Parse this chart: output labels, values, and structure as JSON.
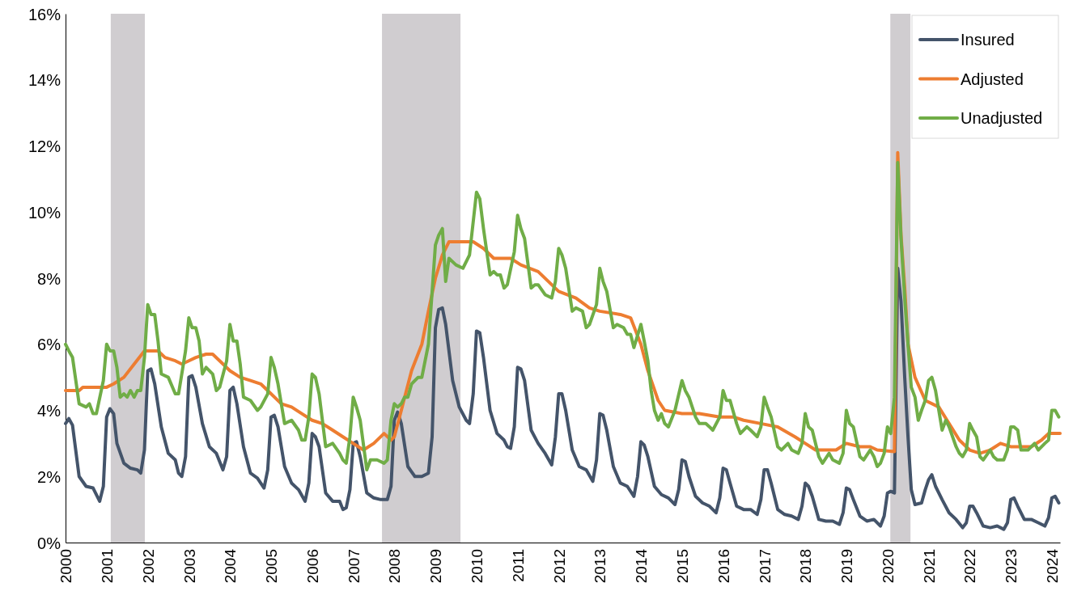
{
  "chart_data": {
    "type": "line",
    "xlim": [
      2000,
      2024.2
    ],
    "xticks": [
      2000,
      2001,
      2002,
      2003,
      2004,
      2005,
      2006,
      2007,
      2008,
      2009,
      2010,
      2011,
      2012,
      2013,
      2014,
      2015,
      2016,
      2017,
      2018,
      2019,
      2020,
      2021,
      2022,
      2023,
      2024
    ],
    "ylim": [
      0,
      16
    ],
    "yticks": [
      {
        "value": 0,
        "label": "0%"
      },
      {
        "value": 2,
        "label": "2%"
      },
      {
        "value": 4,
        "label": "4%"
      },
      {
        "value": 6,
        "label": "6%"
      },
      {
        "value": 8,
        "label": "8%"
      },
      {
        "value": 10,
        "label": "10%"
      },
      {
        "value": 12,
        "label": "12%"
      },
      {
        "value": 14,
        "label": "14%"
      },
      {
        "value": 16,
        "label": "16%"
      }
    ],
    "grid": false,
    "legend": "top right",
    "line_style": "solid",
    "marker": "none",
    "bands": [
      {
        "axis": "x",
        "from": 2001.1,
        "to": 2001.93,
        "color": "#d0cdd0"
      },
      {
        "axis": "x",
        "from": 2007.7,
        "to": 2009.61,
        "color": "#d0cdd0"
      },
      {
        "axis": "x",
        "from": 2020.07,
        "to": 2020.56,
        "color": "#d0cdd0"
      }
    ],
    "series": [
      {
        "name": "Insured",
        "color": "#44546a",
        "x": [
          2000,
          2000.08,
          2000.17,
          2000.33,
          2000.5,
          2000.67,
          2000.83,
          2000.92,
          2001,
          2001.08,
          2001.17,
          2001.25,
          2001.42,
          2001.58,
          2001.75,
          2001.83,
          2001.92,
          2002,
          2002.08,
          2002.17,
          2002.33,
          2002.5,
          2002.67,
          2002.75,
          2002.83,
          2002.92,
          2003,
          2003.08,
          2003.17,
          2003.33,
          2003.5,
          2003.67,
          2003.83,
          2003.92,
          2004,
          2004.08,
          2004.17,
          2004.33,
          2004.5,
          2004.67,
          2004.83,
          2004.92,
          2005,
          2005.08,
          2005.17,
          2005.33,
          2005.5,
          2005.67,
          2005.83,
          2005.92,
          2006,
          2006.08,
          2006.17,
          2006.33,
          2006.5,
          2006.67,
          2006.75,
          2006.83,
          2006.92,
          2007,
          2007.08,
          2007.17,
          2007.33,
          2007.5,
          2007.67,
          2007.83,
          2007.92,
          2008,
          2008.08,
          2008.17,
          2008.33,
          2008.5,
          2008.67,
          2008.83,
          2008.92,
          2009,
          2009.08,
          2009.17,
          2009.25,
          2009.42,
          2009.58,
          2009.75,
          2009.83,
          2009.92,
          2010,
          2010.08,
          2010.17,
          2010.33,
          2010.5,
          2010.67,
          2010.75,
          2010.83,
          2010.92,
          2011,
          2011.08,
          2011.17,
          2011.33,
          2011.5,
          2011.67,
          2011.83,
          2011.92,
          2012,
          2012.08,
          2012.17,
          2012.33,
          2012.5,
          2012.67,
          2012.83,
          2012.92,
          2013,
          2013.08,
          2013.17,
          2013.33,
          2013.5,
          2013.67,
          2013.83,
          2013.92,
          2014,
          2014.08,
          2014.17,
          2014.33,
          2014.5,
          2014.67,
          2014.83,
          2014.92,
          2015,
          2015.08,
          2015.17,
          2015.33,
          2015.5,
          2015.67,
          2015.83,
          2015.92,
          2016,
          2016.08,
          2016.17,
          2016.33,
          2016.5,
          2016.67,
          2016.83,
          2016.92,
          2017,
          2017.08,
          2017.17,
          2017.33,
          2017.5,
          2017.67,
          2017.83,
          2017.92,
          2018,
          2018.08,
          2018.17,
          2018.33,
          2018.5,
          2018.67,
          2018.83,
          2018.92,
          2019,
          2019.08,
          2019.17,
          2019.33,
          2019.5,
          2019.67,
          2019.83,
          2019.92,
          2020,
          2020.08,
          2020.17,
          2020.25,
          2020.33,
          2020.42,
          2020.5,
          2020.58,
          2020.67,
          2020.83,
          2020.92,
          2021,
          2021.08,
          2021.17,
          2021.33,
          2021.5,
          2021.67,
          2021.83,
          2021.92,
          2022,
          2022.08,
          2022.17,
          2022.33,
          2022.5,
          2022.67,
          2022.83,
          2022.92,
          2023,
          2023.08,
          2023.17,
          2023.33,
          2023.5,
          2023.67,
          2023.83,
          2023.92,
          2024,
          2024.08,
          2024.17
        ],
        "values": [
          3.6,
          3.75,
          3.55,
          2.0,
          1.7,
          1.65,
          1.25,
          1.7,
          3.8,
          4.05,
          3.9,
          3.0,
          2.4,
          2.25,
          2.2,
          2.1,
          2.8,
          5.2,
          5.25,
          4.8,
          3.5,
          2.7,
          2.5,
          2.1,
          2.0,
          2.6,
          5.0,
          5.05,
          4.7,
          3.6,
          2.9,
          2.7,
          2.2,
          2.6,
          4.6,
          4.7,
          4.2,
          2.9,
          2.1,
          1.95,
          1.65,
          2.2,
          3.8,
          3.85,
          3.5,
          2.3,
          1.8,
          1.6,
          1.25,
          1.8,
          3.3,
          3.2,
          2.9,
          1.5,
          1.25,
          1.25,
          1.0,
          1.05,
          1.6,
          3.0,
          3.05,
          2.6,
          1.5,
          1.35,
          1.3,
          1.3,
          1.7,
          3.7,
          3.95,
          3.6,
          2.3,
          2.0,
          2.0,
          2.1,
          3.2,
          6.5,
          7.05,
          7.1,
          6.6,
          4.9,
          4.1,
          3.7,
          3.6,
          4.5,
          6.4,
          6.35,
          5.6,
          4.0,
          3.3,
          3.1,
          2.9,
          2.85,
          3.5,
          5.3,
          5.25,
          4.9,
          3.4,
          3.0,
          2.7,
          2.35,
          3.2,
          4.5,
          4.5,
          4.0,
          2.8,
          2.3,
          2.2,
          1.85,
          2.5,
          3.9,
          3.85,
          3.4,
          2.3,
          1.8,
          1.7,
          1.4,
          2.0,
          3.05,
          2.95,
          2.6,
          1.7,
          1.45,
          1.35,
          1.15,
          1.6,
          2.5,
          2.45,
          2.0,
          1.4,
          1.2,
          1.1,
          0.9,
          1.35,
          2.25,
          2.2,
          1.8,
          1.1,
          1.0,
          1.0,
          0.85,
          1.3,
          2.2,
          2.2,
          1.8,
          1.0,
          0.85,
          0.8,
          0.7,
          1.1,
          1.8,
          1.7,
          1.4,
          0.7,
          0.65,
          0.65,
          0.55,
          0.9,
          1.65,
          1.6,
          1.3,
          0.8,
          0.65,
          0.7,
          0.5,
          0.8,
          1.5,
          1.55,
          1.5,
          8.3,
          7.3,
          5.0,
          3.2,
          1.6,
          1.15,
          1.2,
          1.6,
          1.9,
          2.05,
          1.7,
          1.3,
          0.9,
          0.7,
          0.45,
          0.6,
          1.1,
          1.1,
          0.9,
          0.5,
          0.45,
          0.5,
          0.4,
          0.6,
          1.3,
          1.35,
          1.1,
          0.7,
          0.7,
          0.6,
          0.5,
          0.75,
          1.35,
          1.4,
          1.2
        ]
      },
      {
        "name": "Adjusted",
        "color": "#ed7d31",
        "x": [
          2000,
          2000.33,
          2000.42,
          2001,
          2001.17,
          2001.42,
          2001.67,
          2001.92,
          2002.25,
          2002.42,
          2002.67,
          2002.83,
          2003,
          2003.17,
          2003.42,
          2003.58,
          2003.75,
          2004,
          2004.25,
          2004.5,
          2004.75,
          2005,
          2005.25,
          2005.5,
          2005.75,
          2006,
          2006.25,
          2006.5,
          2006.75,
          2007,
          2007.25,
          2007.5,
          2007.75,
          2007.92,
          2008,
          2008.17,
          2008.42,
          2008.67,
          2008.83,
          2009,
          2009.17,
          2009.33,
          2009.92,
          2010.17,
          2010.42,
          2010.83,
          2011.08,
          2011.5,
          2011.75,
          2012,
          2012.42,
          2012.75,
          2013,
          2013.5,
          2013.75,
          2014,
          2014.17,
          2014.42,
          2014.58,
          2015,
          2015.42,
          2015.92,
          2016.25,
          2016.5,
          2016.92,
          2017.33,
          2017.75,
          2018,
          2018.25,
          2018.75,
          2019,
          2019.33,
          2019.58,
          2019.75,
          2020.17,
          2020.25,
          2020.33,
          2020.42,
          2020.5,
          2020.67,
          2020.92,
          2021.25,
          2021.5,
          2021.75,
          2022,
          2022.25,
          2022.5,
          2022.75,
          2023,
          2023.5,
          2023.75,
          2023.92,
          2024.2
        ],
        "values": [
          4.6,
          4.6,
          4.7,
          4.7,
          4.8,
          5.0,
          5.4,
          5.8,
          5.8,
          5.6,
          5.5,
          5.4,
          5.5,
          5.6,
          5.7,
          5.7,
          5.5,
          5.2,
          5.0,
          4.9,
          4.8,
          4.5,
          4.2,
          4.1,
          3.9,
          3.7,
          3.6,
          3.4,
          3.2,
          3.0,
          2.8,
          3.0,
          3.3,
          3.1,
          3.2,
          4.0,
          5.2,
          6.0,
          7.0,
          8.0,
          8.7,
          9.1,
          9.1,
          8.9,
          8.6,
          8.6,
          8.4,
          8.2,
          7.9,
          7.6,
          7.4,
          7.1,
          7.0,
          6.9,
          6.8,
          6.0,
          5.2,
          4.3,
          4.0,
          3.9,
          3.9,
          3.8,
          3.8,
          3.7,
          3.6,
          3.5,
          3.2,
          3.0,
          2.8,
          2.8,
          3.0,
          2.9,
          2.9,
          2.8,
          2.75,
          11.8,
          9.3,
          7.7,
          6.0,
          5.0,
          4.3,
          4.1,
          3.6,
          3.1,
          2.8,
          2.7,
          2.8,
          3.0,
          2.9,
          2.9,
          3.1,
          3.3,
          3.3
        ]
      },
      {
        "name": "Unadjusted",
        "color": "#70ad47",
        "x": [
          2000,
          2000.08,
          2000.17,
          2000.33,
          2000.5,
          2000.58,
          2000.67,
          2000.75,
          2000.92,
          2001,
          2001.08,
          2001.17,
          2001.25,
          2001.33,
          2001.42,
          2001.5,
          2001.58,
          2001.67,
          2001.75,
          2001.83,
          2001.92,
          2002,
          2002.08,
          2002.17,
          2002.25,
          2002.33,
          2002.5,
          2002.67,
          2002.75,
          2002.92,
          2003,
          2003.08,
          2003.17,
          2003.25,
          2003.33,
          2003.42,
          2003.58,
          2003.67,
          2003.75,
          2003.92,
          2004,
          2004.08,
          2004.17,
          2004.25,
          2004.33,
          2004.5,
          2004.67,
          2004.75,
          2004.92,
          2005,
          2005.08,
          2005.17,
          2005.33,
          2005.5,
          2005.67,
          2005.75,
          2005.83,
          2005.92,
          2006,
          2006.08,
          2006.17,
          2006.33,
          2006.5,
          2006.67,
          2006.75,
          2006.83,
          2006.92,
          2007,
          2007.08,
          2007.17,
          2007.33,
          2007.42,
          2007.58,
          2007.75,
          2007.83,
          2007.92,
          2008,
          2008.08,
          2008.17,
          2008.25,
          2008.33,
          2008.42,
          2008.58,
          2008.67,
          2008.83,
          2009,
          2009.08,
          2009.17,
          2009.25,
          2009.33,
          2009.5,
          2009.67,
          2009.83,
          2010,
          2010.08,
          2010.17,
          2010.33,
          2010.42,
          2010.5,
          2010.58,
          2010.67,
          2010.75,
          2010.92,
          2011,
          2011.08,
          2011.17,
          2011.33,
          2011.42,
          2011.5,
          2011.67,
          2011.83,
          2011.92,
          2012,
          2012.08,
          2012.17,
          2012.33,
          2012.42,
          2012.58,
          2012.67,
          2012.75,
          2012.92,
          2013,
          2013.08,
          2013.17,
          2013.33,
          2013.42,
          2013.58,
          2013.67,
          2013.75,
          2013.83,
          2014,
          2014.08,
          2014.17,
          2014.25,
          2014.33,
          2014.42,
          2014.5,
          2014.58,
          2014.67,
          2014.83,
          2015,
          2015.08,
          2015.17,
          2015.33,
          2015.42,
          2015.58,
          2015.67,
          2015.75,
          2015.92,
          2016,
          2016.08,
          2016.17,
          2016.33,
          2016.42,
          2016.58,
          2016.67,
          2016.83,
          2016.92,
          2017,
          2017.08,
          2017.17,
          2017.33,
          2017.42,
          2017.58,
          2017.67,
          2017.83,
          2017.92,
          2018,
          2018.08,
          2018.17,
          2018.33,
          2018.42,
          2018.58,
          2018.67,
          2018.83,
          2018.92,
          2019,
          2019.08,
          2019.17,
          2019.33,
          2019.42,
          2019.58,
          2019.67,
          2019.75,
          2019.83,
          2019.92,
          2020,
          2020.08,
          2020.17,
          2020.25,
          2020.33,
          2020.42,
          2020.5,
          2020.58,
          2020.67,
          2020.75,
          2020.83,
          2020.92,
          2021,
          2021.08,
          2021.17,
          2021.33,
          2021.42,
          2021.5,
          2021.67,
          2021.75,
          2021.83,
          2021.92,
          2022,
          2022.08,
          2022.17,
          2022.25,
          2022.33,
          2022.5,
          2022.58,
          2022.67,
          2022.83,
          2022.92,
          2023,
          2023.08,
          2023.17,
          2023.25,
          2023.42,
          2023.58,
          2023.67,
          2023.83,
          2023.92,
          2024,
          2024.08,
          2024.17
        ],
        "values": [
          6.0,
          5.8,
          5.6,
          4.2,
          4.1,
          4.2,
          3.9,
          3.9,
          4.9,
          6.0,
          5.8,
          5.8,
          5.3,
          4.4,
          4.5,
          4.4,
          4.6,
          4.4,
          4.6,
          4.6,
          5.6,
          7.2,
          6.9,
          6.9,
          6.1,
          5.1,
          5.0,
          4.5,
          4.5,
          5.8,
          6.8,
          6.5,
          6.5,
          6.1,
          5.1,
          5.3,
          5.1,
          4.6,
          4.7,
          5.5,
          6.6,
          6.1,
          6.1,
          5.4,
          4.4,
          4.3,
          4.0,
          4.1,
          4.5,
          5.6,
          5.3,
          4.8,
          3.6,
          3.7,
          3.4,
          3.1,
          3.1,
          3.8,
          5.1,
          5.0,
          4.5,
          2.9,
          3.0,
          2.7,
          2.5,
          2.4,
          3.2,
          4.4,
          4.1,
          3.7,
          2.2,
          2.5,
          2.5,
          2.4,
          2.5,
          3.7,
          4.2,
          4.1,
          4.2,
          4.4,
          4.4,
          4.8,
          5.0,
          5.0,
          6.0,
          9.0,
          9.3,
          9.5,
          7.9,
          8.6,
          8.4,
          8.3,
          8.7,
          10.6,
          10.4,
          9.5,
          8.1,
          8.2,
          8.1,
          8.1,
          7.7,
          7.8,
          8.8,
          9.9,
          9.5,
          9.2,
          7.7,
          7.8,
          7.8,
          7.5,
          7.4,
          7.9,
          8.9,
          8.7,
          8.3,
          7.0,
          7.1,
          7.0,
          6.5,
          6.6,
          7.2,
          8.3,
          7.9,
          7.6,
          6.5,
          6.6,
          6.5,
          6.3,
          6.3,
          5.9,
          6.6,
          6.1,
          5.5,
          4.6,
          4.0,
          3.7,
          3.9,
          3.6,
          3.5,
          4.0,
          4.9,
          4.6,
          4.4,
          3.8,
          3.6,
          3.6,
          3.5,
          3.4,
          3.8,
          4.6,
          4.3,
          4.3,
          3.6,
          3.3,
          3.5,
          3.4,
          3.2,
          3.5,
          4.4,
          4.1,
          3.8,
          2.9,
          2.8,
          3.0,
          2.8,
          2.7,
          3.0,
          3.9,
          3.5,
          3.4,
          2.6,
          2.4,
          2.7,
          2.5,
          2.4,
          2.7,
          4.0,
          3.6,
          3.5,
          2.6,
          2.5,
          2.8,
          2.6,
          2.3,
          2.4,
          2.7,
          3.5,
          3.3,
          4.4,
          11.5,
          9.2,
          7.4,
          6.0,
          4.7,
          4.4,
          3.7,
          4.0,
          4.3,
          4.9,
          5.0,
          4.6,
          3.4,
          3.7,
          3.5,
          2.9,
          2.7,
          2.6,
          2.8,
          3.6,
          3.4,
          3.2,
          2.6,
          2.5,
          2.8,
          2.6,
          2.5,
          2.5,
          2.8,
          3.5,
          3.5,
          3.4,
          2.8,
          2.8,
          3.0,
          2.8,
          3.0,
          3.1,
          4.0,
          4.0,
          3.8
        ]
      }
    ]
  }
}
